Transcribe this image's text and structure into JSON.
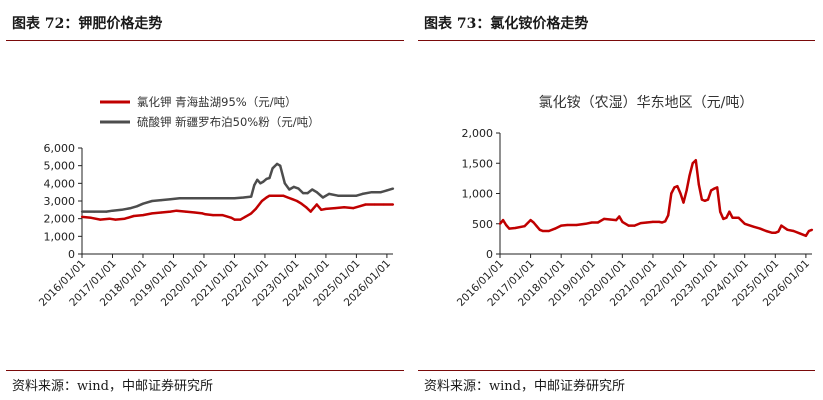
{
  "left_panel": {
    "title": "图表 72：钾肥价格走势",
    "source": "资料来源：wind，中邮证券研究所"
  },
  "right_panel": {
    "title": "图表 73：氯化铵价格走势",
    "source": "资料来源：wind，中邮证券研究所"
  },
  "chart_data": [
    {
      "type": "line",
      "title": "",
      "xlabel": "",
      "ylabel": "",
      "ylim": [
        0,
        6000
      ],
      "xlim": [
        2016.0,
        2026.2
      ],
      "y_ticks": [
        "0",
        "1,000",
        "2,000",
        "3,000",
        "4,000",
        "5,000",
        "6,000"
      ],
      "x_ticks": [
        "2016/01/01",
        "2017/01/01",
        "2018/01/01",
        "2019/01/01",
        "2020/01/01",
        "2021/01/01",
        "2022/01/01",
        "2023/01/01",
        "2024/01/01",
        "2025/01/01",
        "2026/01/01"
      ],
      "legend_position": "top-left",
      "grid": false,
      "series": [
        {
          "name": "氯化钾 青海盐湖95%（元/吨）",
          "color": "#c00000",
          "x": [
            2016.0,
            2016.3,
            2016.6,
            2016.9,
            2017.1,
            2017.4,
            2017.7,
            2018.0,
            2018.3,
            2018.6,
            2018.9,
            2019.1,
            2019.4,
            2019.7,
            2019.95,
            2020.05,
            2020.3,
            2020.6,
            2020.9,
            2021.0,
            2021.2,
            2021.35,
            2021.5,
            2021.55,
            2021.7,
            2021.9,
            2022.05,
            2022.15,
            2022.25,
            2022.35,
            2022.5,
            2022.6,
            2022.75,
            2022.9,
            2023.05,
            2023.2,
            2023.35,
            2023.5,
            2023.6,
            2023.7,
            2023.85,
            2024.0,
            2024.3,
            2024.6,
            2024.9,
            2025.1,
            2025.3,
            2025.6,
            2025.9,
            2026.2
          ],
          "values": [
            2100,
            2050,
            1950,
            2000,
            1950,
            2000,
            2150,
            2200,
            2300,
            2350,
            2400,
            2450,
            2400,
            2350,
            2300,
            2250,
            2200,
            2200,
            2050,
            1950,
            1950,
            2100,
            2250,
            2300,
            2550,
            3000,
            3200,
            3300,
            3300,
            3300,
            3300,
            3300,
            3200,
            3100,
            3000,
            2850,
            2650,
            2400,
            2600,
            2800,
            2500,
            2550,
            2600,
            2650,
            2600,
            2700,
            2800,
            2800,
            2800,
            2800
          ]
        },
        {
          "name": "硫酸钾 新疆罗布泊50%粉（元/吨）",
          "color": "#4d4d4d",
          "x": [
            2016.0,
            2016.4,
            2016.8,
            2017.0,
            2017.3,
            2017.6,
            2017.8,
            2018.0,
            2018.3,
            2018.6,
            2018.9,
            2019.2,
            2019.6,
            2020.0,
            2020.4,
            2020.8,
            2021.0,
            2021.3,
            2021.55,
            2021.65,
            2021.75,
            2021.85,
            2021.95,
            2022.05,
            2022.15,
            2022.25,
            2022.4,
            2022.5,
            2022.65,
            2022.8,
            2022.95,
            2023.1,
            2023.25,
            2023.4,
            2023.55,
            2023.7,
            2023.9,
            2024.1,
            2024.4,
            2024.7,
            2025.0,
            2025.2,
            2025.5,
            2025.8,
            2026.0,
            2026.2
          ],
          "values": [
            2400,
            2400,
            2400,
            2450,
            2500,
            2600,
            2700,
            2850,
            3000,
            3050,
            3100,
            3150,
            3150,
            3150,
            3150,
            3150,
            3150,
            3200,
            3250,
            3900,
            4200,
            4000,
            4100,
            4250,
            4300,
            4850,
            5100,
            5000,
            4000,
            3650,
            3800,
            3700,
            3450,
            3450,
            3650,
            3500,
            3200,
            3400,
            3300,
            3300,
            3300,
            3400,
            3500,
            3500,
            3600,
            3700
          ]
        }
      ]
    },
    {
      "type": "line",
      "title": "氯化铵（农湿）华东地区（元/吨）",
      "xlabel": "",
      "ylabel": "",
      "ylim": [
        0,
        2000
      ],
      "xlim": [
        2016.0,
        2026.2
      ],
      "y_ticks": [
        "0",
        "500",
        "1,000",
        "1,500",
        "2,000"
      ],
      "x_ticks": [
        "2016/01/01",
        "2017/01/01",
        "2018/01/01",
        "2019/01/01",
        "2020/01/01",
        "2021/01/01",
        "2022/01/01",
        "2023/01/01",
        "2024/01/01",
        "2025/01/01",
        "2026/01/01"
      ],
      "grid": false,
      "series": [
        {
          "name": "氯化铵（农湿）华东地区（元/吨）",
          "color": "#c00000",
          "x": [
            2016.0,
            2016.1,
            2016.2,
            2016.3,
            2016.5,
            2016.8,
            2017.0,
            2017.1,
            2017.2,
            2017.3,
            2017.4,
            2017.6,
            2017.8,
            2018.0,
            2018.2,
            2018.5,
            2018.8,
            2019.0,
            2019.2,
            2019.4,
            2019.6,
            2019.8,
            2019.9,
            2020.0,
            2020.2,
            2020.4,
            2020.6,
            2020.8,
            2021.0,
            2021.2,
            2021.3,
            2021.4,
            2021.5,
            2021.6,
            2021.7,
            2021.8,
            2021.9,
            2022.0,
            2022.1,
            2022.2,
            2022.3,
            2022.4,
            2022.5,
            2022.6,
            2022.7,
            2022.8,
            2022.9,
            2023.0,
            2023.1,
            2023.2,
            2023.3,
            2023.4,
            2023.5,
            2023.6,
            2023.8,
            2024.0,
            2024.3,
            2024.5,
            2024.7,
            2024.9,
            2025.0,
            2025.1,
            2025.2,
            2025.4,
            2025.6,
            2025.8,
            2026.0,
            2026.1,
            2026.2
          ],
          "values": [
            500,
            560,
            480,
            420,
            430,
            460,
            560,
            520,
            460,
            400,
            380,
            380,
            420,
            470,
            480,
            480,
            500,
            520,
            520,
            580,
            570,
            560,
            620,
            530,
            470,
            470,
            510,
            520,
            530,
            530,
            520,
            540,
            640,
            1000,
            1100,
            1120,
            1000,
            850,
            1050,
            1300,
            1500,
            1550,
            1150,
            900,
            880,
            900,
            1050,
            1080,
            1100,
            700,
            580,
            600,
            700,
            600,
            600,
            500,
            450,
            420,
            380,
            350,
            350,
            370,
            470,
            400,
            380,
            340,
            300,
            380,
            400
          ]
        }
      ]
    }
  ]
}
